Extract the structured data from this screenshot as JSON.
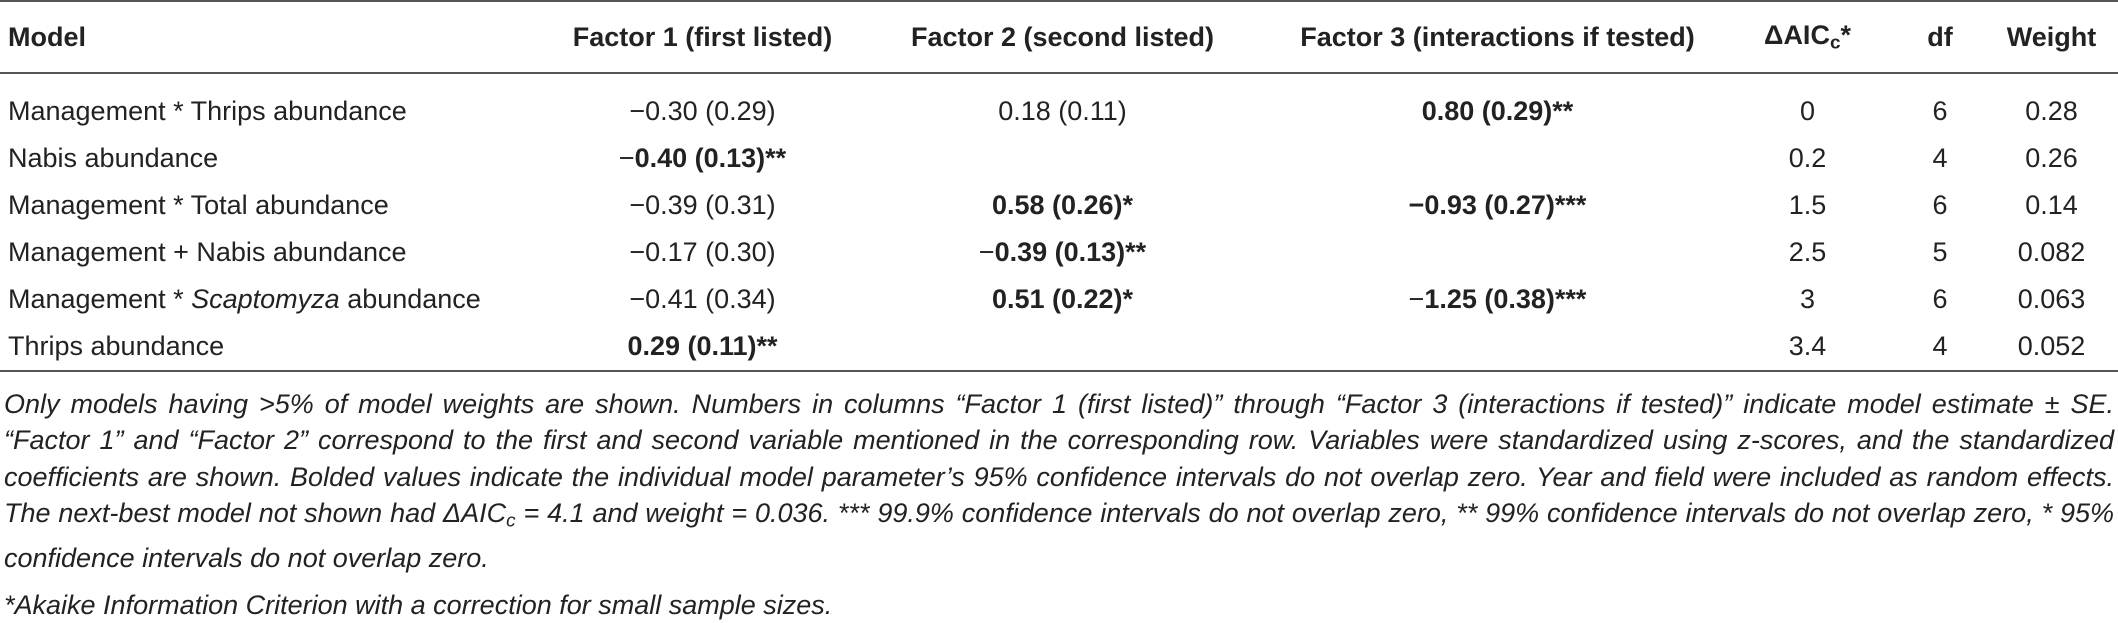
{
  "table": {
    "header": [
      "Model",
      "Factor 1 (first listed)",
      "Factor 2 (second listed)",
      "Factor 3 (interactions if tested)",
      [
        {
          "text": "ΔAIC"
        },
        {
          "text": "c",
          "sub": true
        },
        {
          "text": "*"
        }
      ],
      "df",
      "Weight"
    ],
    "rows": [
      [
        "Management * Thrips abundance",
        "−0.30 (0.29)",
        "0.18 (0.11)",
        [
          {
            "text": "0.80 (0.29)**",
            "bold": true
          }
        ],
        "0",
        "6",
        "0.28"
      ],
      [
        "Nabis abundance",
        [
          {
            "text": "−"
          },
          {
            "text": "0.40 (0.13)**",
            "bold": true
          }
        ],
        null,
        null,
        "0.2",
        "4",
        "0.26"
      ],
      [
        "Management * Total abundance",
        "−0.39 (0.31)",
        [
          {
            "text": "0.58 (0.26)*",
            "bold": true
          }
        ],
        [
          {
            "text": "−0.93 (0.27)***",
            "bold": true
          }
        ],
        "1.5",
        "6",
        "0.14"
      ],
      [
        "Management + Nabis abundance",
        "−0.17 (0.30)",
        [
          {
            "text": "−"
          },
          {
            "text": "0.39 (0.13)**",
            "bold": true
          }
        ],
        null,
        "2.5",
        "5",
        "0.082"
      ],
      [
        [
          {
            "text": "Management * "
          },
          {
            "text": "Scaptomyza",
            "italic": true
          },
          {
            "text": " abundance"
          }
        ],
        "−0.41 (0.34)",
        [
          {
            "text": "0.51 (0.22)*",
            "bold": true
          }
        ],
        [
          {
            "text": "−"
          },
          {
            "text": "1.25 (0.38)***",
            "bold": true
          }
        ],
        "3",
        "6",
        "0.063"
      ],
      [
        "Thrips abundance",
        [
          {
            "text": "0.29 (0.11)**",
            "bold": true
          }
        ],
        null,
        null,
        "3.4",
        "4",
        "0.052"
      ]
    ]
  },
  "footnotes": [
    [
      {
        "text": "Only models having >5% of model weights are shown. Numbers in columns “Factor 1 (first listed)” through “Factor 3 (interactions if tested)” indicate model estimate ± SE. “Factor 1” and “Factor 2” correspond to the first and second variable mentioned in the corresponding row. Variables were standardized using z-scores, and the standardized coefficients are shown. Bolded values indicate the individual model parameter’s 95% confidence intervals do not overlap zero. Year and field were included as random effects. The next-best model not shown had ΔAIC"
      },
      {
        "text": "c",
        "sub": true
      },
      {
        "text": " = 4.1 and weight = 0.036. *** 99.9% confidence intervals do not overlap zero, ** 99% confidence intervals do not overlap zero, * 95% confidence intervals do not overlap zero."
      }
    ],
    "*Akaike Information Criterion with a correction for small sample sizes."
  ]
}
